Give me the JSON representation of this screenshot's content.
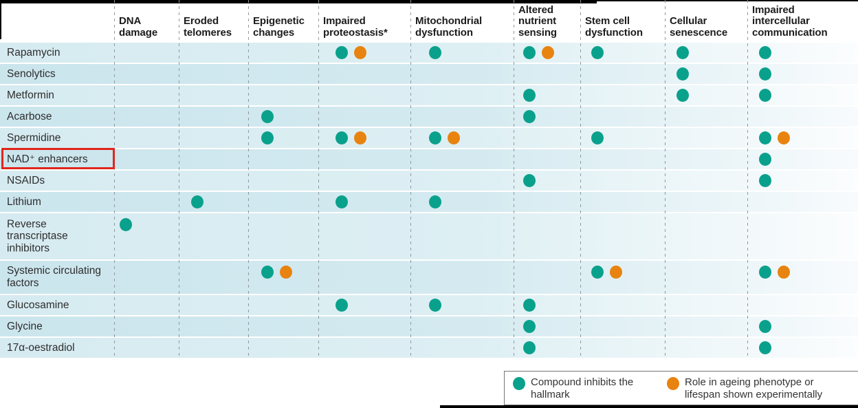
{
  "chart_data": {
    "type": "table",
    "columns": [
      "DNA damage",
      "Eroded telomeres",
      "Epigenetic changes",
      "Impaired proteostasis*",
      "Mitochondrial dysfunction",
      "Altered nutrient sensing",
      "Stem cell dysfunction",
      "Cellular senescence",
      "Impaired intercellular communication"
    ],
    "mark_colors": {
      "inhibits": "#0aa18c",
      "experimental": "#e8830f"
    },
    "rows": [
      {
        "compound": "Rapamycin",
        "marks": [
          {
            "col": 3,
            "inhibits": true,
            "experimental": true
          },
          {
            "col": 4,
            "inhibits": true,
            "experimental": false
          },
          {
            "col": 5,
            "inhibits": true,
            "experimental": true
          },
          {
            "col": 6,
            "inhibits": true,
            "experimental": false
          },
          {
            "col": 7,
            "inhibits": true,
            "experimental": false
          },
          {
            "col": 8,
            "inhibits": true,
            "experimental": false
          }
        ]
      },
      {
        "compound": "Senolytics",
        "marks": [
          {
            "col": 7,
            "inhibits": true,
            "experimental": false
          },
          {
            "col": 8,
            "inhibits": true,
            "experimental": false
          }
        ]
      },
      {
        "compound": "Metformin",
        "marks": [
          {
            "col": 5,
            "inhibits": true,
            "experimental": false
          },
          {
            "col": 7,
            "inhibits": true,
            "experimental": false
          },
          {
            "col": 8,
            "inhibits": true,
            "experimental": false
          }
        ]
      },
      {
        "compound": "Acarbose",
        "marks": [
          {
            "col": 2,
            "inhibits": true,
            "experimental": false
          },
          {
            "col": 5,
            "inhibits": true,
            "experimental": false
          }
        ]
      },
      {
        "compound": "Spermidine",
        "marks": [
          {
            "col": 2,
            "inhibits": true,
            "experimental": false
          },
          {
            "col": 3,
            "inhibits": true,
            "experimental": true
          },
          {
            "col": 4,
            "inhibits": true,
            "experimental": true
          },
          {
            "col": 6,
            "inhibits": true,
            "experimental": false
          },
          {
            "col": 8,
            "inhibits": true,
            "experimental": true
          }
        ]
      },
      {
        "compound": "NAD⁺ enhancers",
        "marks": [
          {
            "col": 8,
            "inhibits": true,
            "experimental": false
          }
        ]
      },
      {
        "compound": "NSAIDs",
        "marks": [
          {
            "col": 5,
            "inhibits": true,
            "experimental": false
          },
          {
            "col": 8,
            "inhibits": true,
            "experimental": false
          }
        ]
      },
      {
        "compound": "Lithium",
        "marks": [
          {
            "col": 1,
            "inhibits": true,
            "experimental": false
          },
          {
            "col": 3,
            "inhibits": true,
            "experimental": false
          },
          {
            "col": 4,
            "inhibits": true,
            "experimental": false
          }
        ]
      },
      {
        "compound": "Reverse transcriptase inhibitors",
        "marks": [
          {
            "col": 0,
            "inhibits": true,
            "experimental": false
          }
        ]
      },
      {
        "compound": "Systemic circulating factors",
        "marks": [
          {
            "col": 2,
            "inhibits": true,
            "experimental": true
          },
          {
            "col": 6,
            "inhibits": true,
            "experimental": true
          },
          {
            "col": 8,
            "inhibits": true,
            "experimental": true
          }
        ]
      },
      {
        "compound": "Glucosamine",
        "marks": [
          {
            "col": 3,
            "inhibits": true,
            "experimental": false
          },
          {
            "col": 4,
            "inhibits": true,
            "experimental": false
          },
          {
            "col": 5,
            "inhibits": true,
            "experimental": false
          }
        ]
      },
      {
        "compound": "Glycine",
        "marks": [
          {
            "col": 5,
            "inhibits": true,
            "experimental": false
          },
          {
            "col": 8,
            "inhibits": true,
            "experimental": false
          }
        ]
      },
      {
        "compound": "17α-oestradiol",
        "marks": [
          {
            "col": 5,
            "inhibits": true,
            "experimental": false
          },
          {
            "col": 8,
            "inhibits": true,
            "experimental": false
          }
        ]
      }
    ],
    "legend_position": "bottom-right",
    "grid": "dashed-vertical"
  },
  "legend": {
    "items": [
      {
        "icon": "teal-dot",
        "color": "#0aa18c",
        "label": "Compound inhibits the hallmark"
      },
      {
        "icon": "orange-dot",
        "color": "#e8830f",
        "label": "Role in ageing phenotype or lifespan shown experimentally"
      }
    ]
  },
  "annotation": {
    "shape": "red-box",
    "target_row": "NAD⁺ enhancers",
    "color": "#e1251b"
  }
}
